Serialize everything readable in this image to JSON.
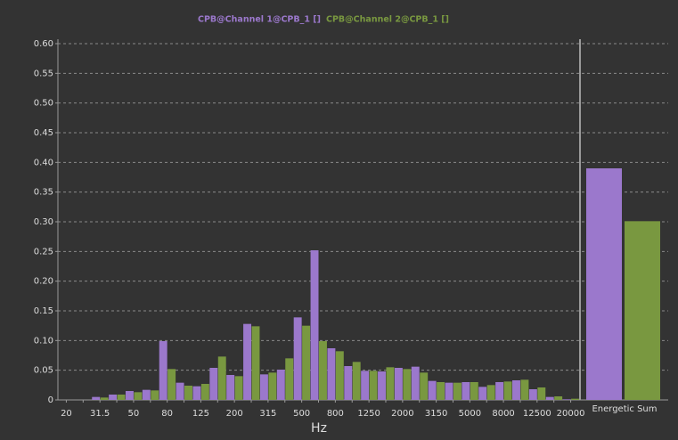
{
  "chart_data": {
    "type": "bar",
    "x_label": "Hz",
    "categories": [
      "20",
      null,
      "31.5",
      null,
      "50",
      null,
      "80",
      null,
      "125",
      null,
      "200",
      null,
      "315",
      null,
      "500",
      null,
      "800",
      null,
      "1250",
      null,
      "2000",
      null,
      "3150",
      null,
      "5000",
      null,
      "8000",
      null,
      "12500",
      null,
      "20000"
    ],
    "series": [
      {
        "name": "CPB@Channel 1@CPB_1 []",
        "color": "#9b78cc",
        "values": [
          0,
          0,
          0.005,
          0.009,
          0.015,
          0.017,
          0.099,
          0.029,
          0.023,
          0.054,
          0.042,
          0.128,
          0.043,
          0.051,
          0.139,
          0.252,
          0.087,
          0.057,
          0.049,
          0.048,
          0.054,
          0.056,
          0.032,
          0.029,
          0.03,
          0.022,
          0.03,
          0.033,
          0.018,
          0.005,
          0.001
        ]
      },
      {
        "name": "CPB@Channel 2@CPB_1 []",
        "color": "#799840",
        "values": [
          0,
          0,
          0.004,
          0.009,
          0.013,
          0.016,
          0.052,
          0.024,
          0.027,
          0.073,
          0.04,
          0.124,
          0.046,
          0.07,
          0.125,
          0.099,
          0.082,
          0.064,
          0.049,
          0.055,
          0.052,
          0.046,
          0.03,
          0.029,
          0.03,
          0.025,
          0.031,
          0.034,
          0.021,
          0.006,
          0.002
        ]
      }
    ],
    "summary": {
      "label": "Energetic Sum",
      "values": [
        0.39,
        0.301
      ]
    },
    "ylim": [
      0,
      0.6
    ],
    "yticks": [
      0,
      0.05,
      {
        "value": 0.1,
        "label": "0.10"
      },
      0.15,
      {
        "value": 0.2,
        "label": "0.20"
      },
      0.25,
      {
        "value": 0.3,
        "label": "0.30"
      },
      0.35,
      {
        "value": 0.4,
        "label": "0.40"
      },
      0.45,
      {
        "value": 0.5,
        "label": "0.50"
      },
      0.55,
      {
        "value": 0.6,
        "label": "0.60"
      }
    ],
    "grid": true
  }
}
